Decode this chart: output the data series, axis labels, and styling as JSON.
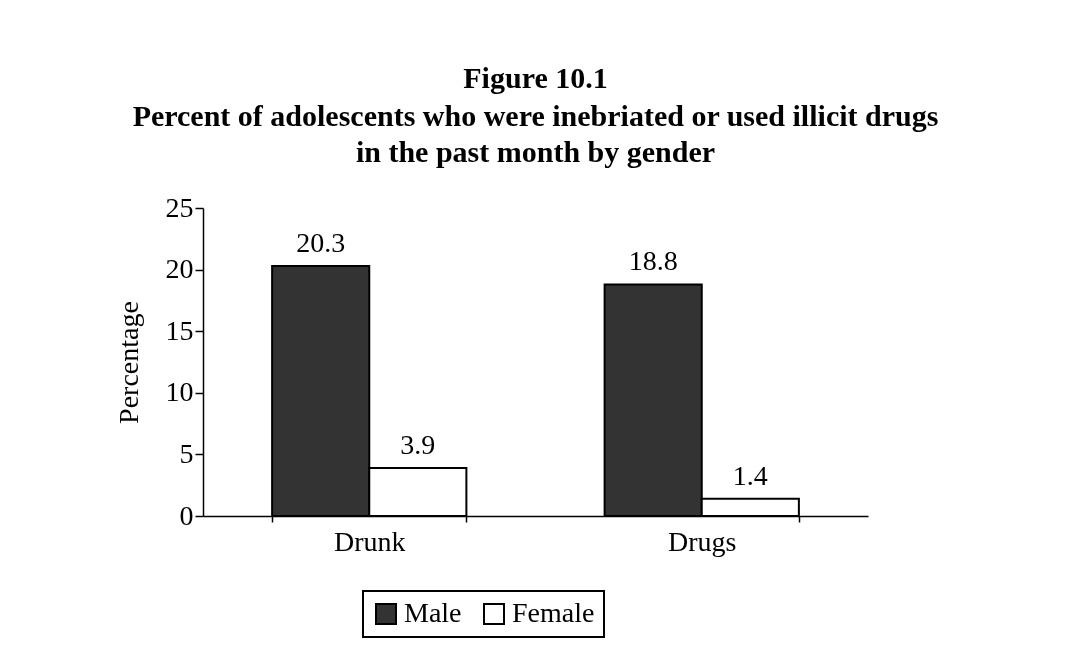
{
  "chart_data": {
    "type": "bar",
    "title": "Figure 10.1",
    "subtitle": "Percent of adolescents who were inebriated or used illicit drugs\nin the past month by gender",
    "ylabel": "Percentage",
    "categories": [
      "Drunk",
      "Drugs"
    ],
    "series": [
      {
        "name": "Male",
        "color": "#333333",
        "values": [
          20.3,
          18.8
        ]
      },
      {
        "name": "Female",
        "color": "#ffffff",
        "values": [
          3.9,
          1.4
        ]
      }
    ],
    "ylim": [
      0,
      25
    ],
    "yticks": [
      0,
      5,
      10,
      15,
      20,
      25
    ],
    "data_labels": true,
    "legend": "bottom",
    "grid": false
  }
}
